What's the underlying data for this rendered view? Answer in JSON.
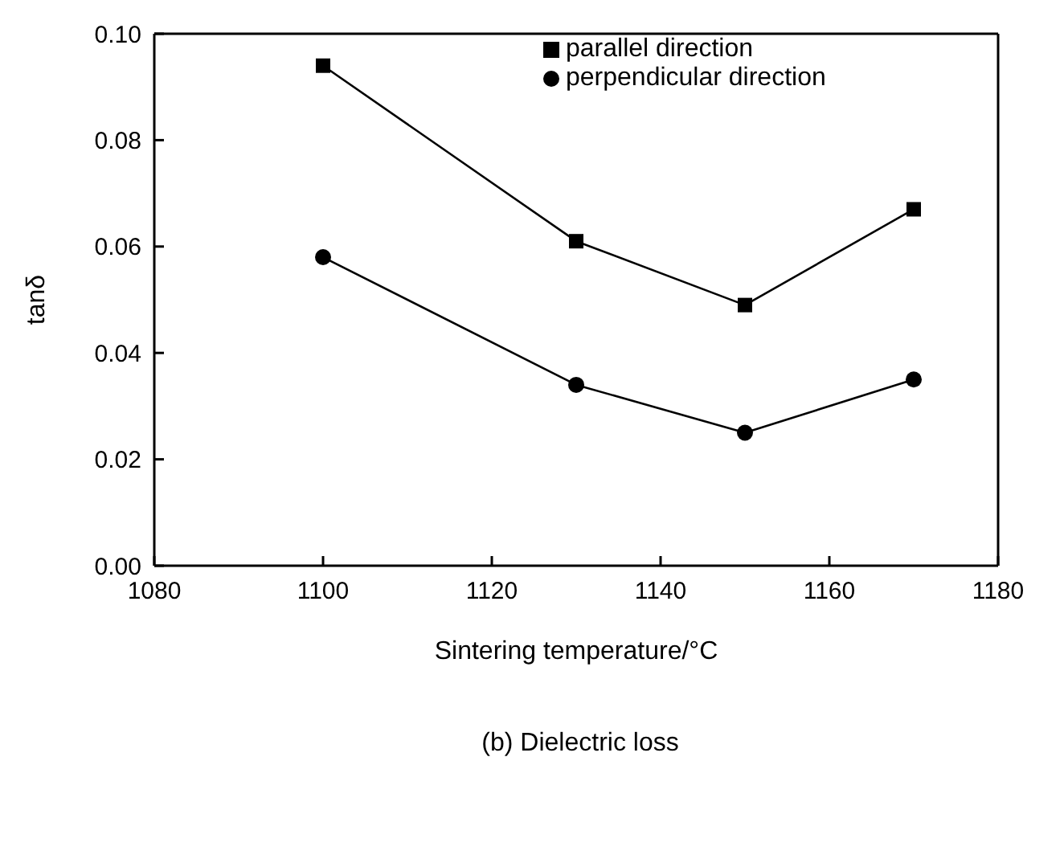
{
  "chart_data": {
    "type": "line",
    "title": "(b) Dielectric loss",
    "xlabel": "Sintering temperature/°C",
    "ylabel": "tanδ",
    "x": [
      1100,
      1130,
      1150,
      1170
    ],
    "series": [
      {
        "name": "parallel direction",
        "color": "#000000",
        "marker": "square",
        "values": [
          0.094,
          0.061,
          0.049,
          0.067
        ]
      },
      {
        "name": "perpendicular direction",
        "color": "#000000",
        "marker": "circle",
        "values": [
          0.058,
          0.034,
          0.025,
          0.035
        ]
      }
    ],
    "xlim": [
      1080,
      1180
    ],
    "xticks": [
      1080,
      1100,
      1120,
      1140,
      1160,
      1180
    ],
    "ylim": [
      0,
      0.1
    ],
    "yticks": [
      {
        "value": 0,
        "label": "0.00"
      },
      {
        "value": 0.02,
        "label": "0.02"
      },
      {
        "value": 0.04,
        "label": "0.04"
      },
      {
        "value": 0.06,
        "label": "0.06"
      },
      {
        "value": 0.08,
        "label": "0.08"
      },
      {
        "value": 0.1,
        "label": "0.10"
      }
    ],
    "grid": false,
    "legend": "top right",
    "line_style": "solid"
  }
}
